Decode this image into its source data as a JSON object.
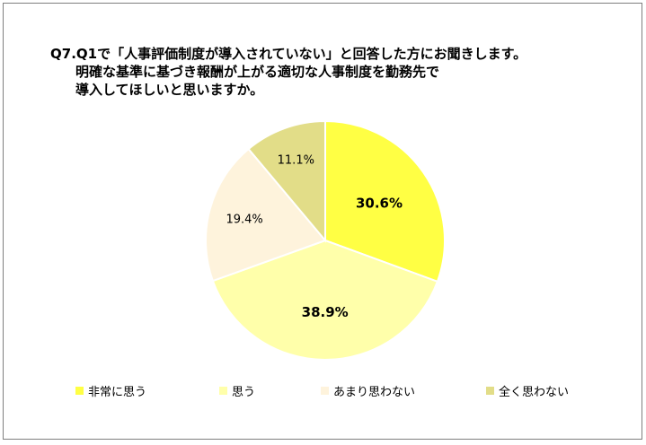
{
  "title": {
    "line1": "Q7.Q1で「人事評価制度が導入されていない」と回答した方にお聞きします。",
    "line2": "明確な基準に基づき報酬が上がる適切な人事制度を勤務先で",
    "line3": "導入してほしいと思いますか。"
  },
  "chart_data": {
    "type": "pie",
    "title": "Q7.Q1で「人事評価制度が導入されていない」と回答した方にお聞きします。明確な基準に基づき報酬が上がる適切な人事制度を勤務先で導入してほしいと思いますか。",
    "categories": [
      "非常に思う",
      "思う",
      "あまり思わない",
      "全く思わない"
    ],
    "values": [
      30.6,
      38.9,
      19.4,
      11.1
    ],
    "labels": [
      "30.6%",
      "38.9%",
      "19.4%",
      "11.1%"
    ],
    "colors": [
      "#ffff44",
      "#ffffaa",
      "#fef3dc",
      "#e2dd88"
    ],
    "start_angle": "12 o'clock, clockwise",
    "legend_position": "bottom"
  }
}
